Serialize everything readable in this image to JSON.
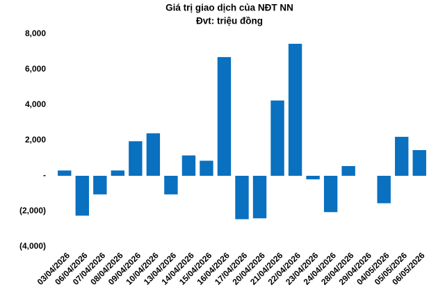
{
  "chart_data": {
    "type": "bar",
    "title": "Giá trị giao dịch của NĐT NN",
    "subtitle": "Đvt: triệu đồng",
    "categories": [
      "03/04/2026",
      "06/04/2026",
      "07/04/2026",
      "08/04/2026",
      "09/04/2026",
      "10/04/2026",
      "13/04/2026",
      "14/04/2026",
      "15/04/2026",
      "16/04/2026",
      "17/04/2026",
      "20/04/2026",
      "21/04/2026",
      "22/04/2026",
      "23/04/2026",
      "24/04/2026",
      "28/04/2026",
      "29/04/2026",
      "04/05/2026",
      "05/05/2026",
      "06/05/2026"
    ],
    "values": [
      300,
      -2250,
      -1050,
      300,
      1950,
      2400,
      -1050,
      1150,
      850,
      6700,
      -2450,
      -2400,
      4250,
      7450,
      -200,
      -2050,
      550,
      0,
      -1550,
      2200,
      1450
    ],
    "color": "#0a70c0",
    "ylim": [
      -4000,
      8000
    ],
    "yticks": [
      {
        "value": -4000,
        "label": "(4,000)"
      },
      {
        "value": -2000,
        "label": "(2,000)"
      },
      {
        "value": 0,
        "label": "-"
      },
      {
        "value": 2000,
        "label": "2,000"
      },
      {
        "value": 4000,
        "label": "4,000"
      },
      {
        "value": 6000,
        "label": "6,000"
      },
      {
        "value": 8000,
        "label": "8,000"
      }
    ],
    "grid": false
  }
}
